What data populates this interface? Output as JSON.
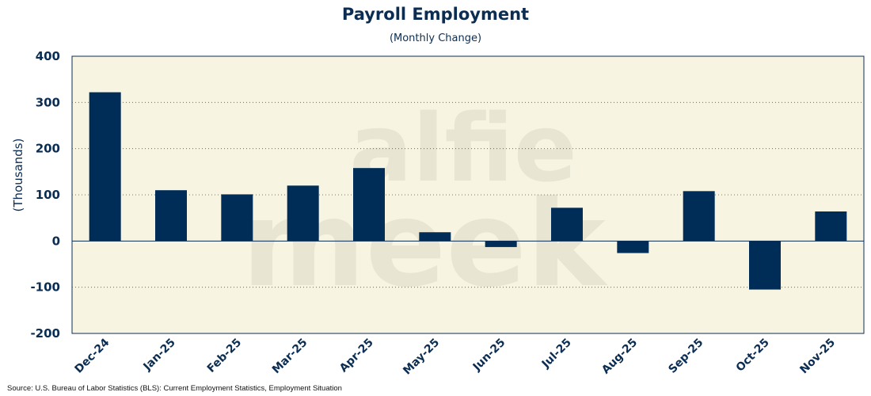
{
  "chart_data": {
    "type": "bar",
    "title": "Payroll Employment",
    "subtitle": "(Monthly Change)",
    "ylabel": "(Thousands)",
    "xlabel": "",
    "ylim": [
      -200,
      400
    ],
    "yticks": [
      400,
      300,
      200,
      100,
      0,
      -100,
      -200
    ],
    "categories": [
      "Dec-24",
      "Jan-25",
      "Feb-25",
      "Mar-25",
      "Apr-25",
      "May-25",
      "Jun-25",
      "Jul-25",
      "Aug-25",
      "Sep-25",
      "Oct-25",
      "Nov-25"
    ],
    "values": [
      322,
      110,
      101,
      120,
      158,
      19,
      -13,
      72,
      -26,
      108,
      -105,
      64
    ],
    "grid": "horizontal dotted",
    "watermark": [
      "alfie",
      "meek"
    ],
    "source": "Source: U.S. Bureau of Labor Statistics (BLS): Current Employment Statistics, Employment Situation"
  },
  "colors": {
    "bar": "#002d57",
    "plot_bg": "#f7f4e2",
    "text": "#0b2d52",
    "watermark": "#dcd9c6"
  }
}
